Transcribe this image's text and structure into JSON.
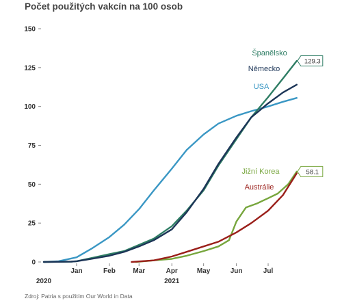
{
  "chart_data": {
    "type": "line",
    "title": "Počet použitých vakcín na 100 osob",
    "source": "Zdroj: Patria s použitím Our World in Data",
    "ylim": [
      0,
      150
    ],
    "y_ticks": [
      0,
      25,
      50,
      75,
      100,
      125,
      150
    ],
    "x_range": [
      "2020-12-01",
      "2021-08-01"
    ],
    "x_ticks": [
      {
        "label": "Jan",
        "date": "2021-01-01"
      },
      {
        "label": "Feb",
        "date": "2021-02-01"
      },
      {
        "label": "Mar",
        "date": "2021-03-01"
      },
      {
        "label": "Apr",
        "date": "2021-04-01"
      },
      {
        "label": "May",
        "date": "2021-05-01"
      },
      {
        "label": "Jun",
        "date": "2021-06-01"
      },
      {
        "label": "Jul",
        "date": "2021-07-01"
      }
    ],
    "year_labels": [
      {
        "label": "2020",
        "date": "2020-12-01"
      },
      {
        "label": "2021",
        "date": "2021-04-01"
      }
    ],
    "grid": false,
    "legend": "inline labels at line ends",
    "series": [
      {
        "name": "USA",
        "color": "#3a97c4",
        "points": [
          [
            "2020-12-01",
            0
          ],
          [
            "2020-12-15",
            0.5
          ],
          [
            "2021-01-01",
            3
          ],
          [
            "2021-01-15",
            8.5
          ],
          [
            "2021-02-01",
            16
          ],
          [
            "2021-02-15",
            24
          ],
          [
            "2021-03-01",
            34
          ],
          [
            "2021-03-15",
            46
          ],
          [
            "2021-04-01",
            60
          ],
          [
            "2021-04-15",
            72
          ],
          [
            "2021-05-01",
            82
          ],
          [
            "2021-05-15",
            89
          ],
          [
            "2021-06-01",
            94
          ],
          [
            "2021-06-15",
            97
          ],
          [
            "2021-07-01",
            100
          ],
          [
            "2021-07-15",
            103
          ],
          [
            "2021-07-28",
            105.5
          ]
        ]
      },
      {
        "name": "Španělsko",
        "color": "#2e7d64",
        "end_value_label": "129.3",
        "points": [
          [
            "2020-12-01",
            0
          ],
          [
            "2020-12-27",
            0.2
          ],
          [
            "2021-01-01",
            0.5
          ],
          [
            "2021-01-15",
            2.5
          ],
          [
            "2021-02-01",
            5
          ],
          [
            "2021-02-15",
            7
          ],
          [
            "2021-03-01",
            11
          ],
          [
            "2021-03-15",
            15
          ],
          [
            "2021-04-01",
            23
          ],
          [
            "2021-04-15",
            33
          ],
          [
            "2021-05-01",
            46
          ],
          [
            "2021-05-15",
            62
          ],
          [
            "2021-06-01",
            79
          ],
          [
            "2021-06-15",
            93
          ],
          [
            "2021-07-01",
            106
          ],
          [
            "2021-07-15",
            118
          ],
          [
            "2021-07-28",
            129.3
          ]
        ]
      },
      {
        "name": "Německo",
        "color": "#1c3557",
        "points": [
          [
            "2020-12-01",
            0
          ],
          [
            "2020-12-27",
            0.2
          ],
          [
            "2021-01-01",
            0.5
          ],
          [
            "2021-01-15",
            2
          ],
          [
            "2021-02-01",
            4
          ],
          [
            "2021-02-15",
            6.5
          ],
          [
            "2021-03-01",
            10
          ],
          [
            "2021-03-15",
            14
          ],
          [
            "2021-04-01",
            21
          ],
          [
            "2021-04-15",
            32
          ],
          [
            "2021-05-01",
            47
          ],
          [
            "2021-05-15",
            63
          ],
          [
            "2021-06-01",
            80
          ],
          [
            "2021-06-15",
            93
          ],
          [
            "2021-07-01",
            102
          ],
          [
            "2021-07-15",
            109
          ],
          [
            "2021-07-28",
            114
          ]
        ]
      },
      {
        "name": "Jižní Korea",
        "color": "#77a63d",
        "end_value_label": "58.1",
        "points": [
          [
            "2021-02-26",
            0
          ],
          [
            "2021-03-15",
            1
          ],
          [
            "2021-04-01",
            2
          ],
          [
            "2021-04-15",
            4
          ],
          [
            "2021-05-01",
            7
          ],
          [
            "2021-05-15",
            10
          ],
          [
            "2021-05-25",
            14
          ],
          [
            "2021-06-01",
            26
          ],
          [
            "2021-06-10",
            35
          ],
          [
            "2021-06-20",
            37.5
          ],
          [
            "2021-07-01",
            41
          ],
          [
            "2021-07-10",
            44
          ],
          [
            "2021-07-20",
            50
          ],
          [
            "2021-07-28",
            58.1
          ]
        ]
      },
      {
        "name": "Austrálie",
        "color": "#9a1f1a",
        "points": [
          [
            "2021-02-22",
            0
          ],
          [
            "2021-03-15",
            1
          ],
          [
            "2021-04-01",
            3.5
          ],
          [
            "2021-04-15",
            6.5
          ],
          [
            "2021-05-01",
            10
          ],
          [
            "2021-05-15",
            13
          ],
          [
            "2021-06-01",
            19
          ],
          [
            "2021-06-15",
            25
          ],
          [
            "2021-07-01",
            33
          ],
          [
            "2021-07-15",
            43
          ],
          [
            "2021-07-28",
            57
          ]
        ]
      }
    ]
  }
}
